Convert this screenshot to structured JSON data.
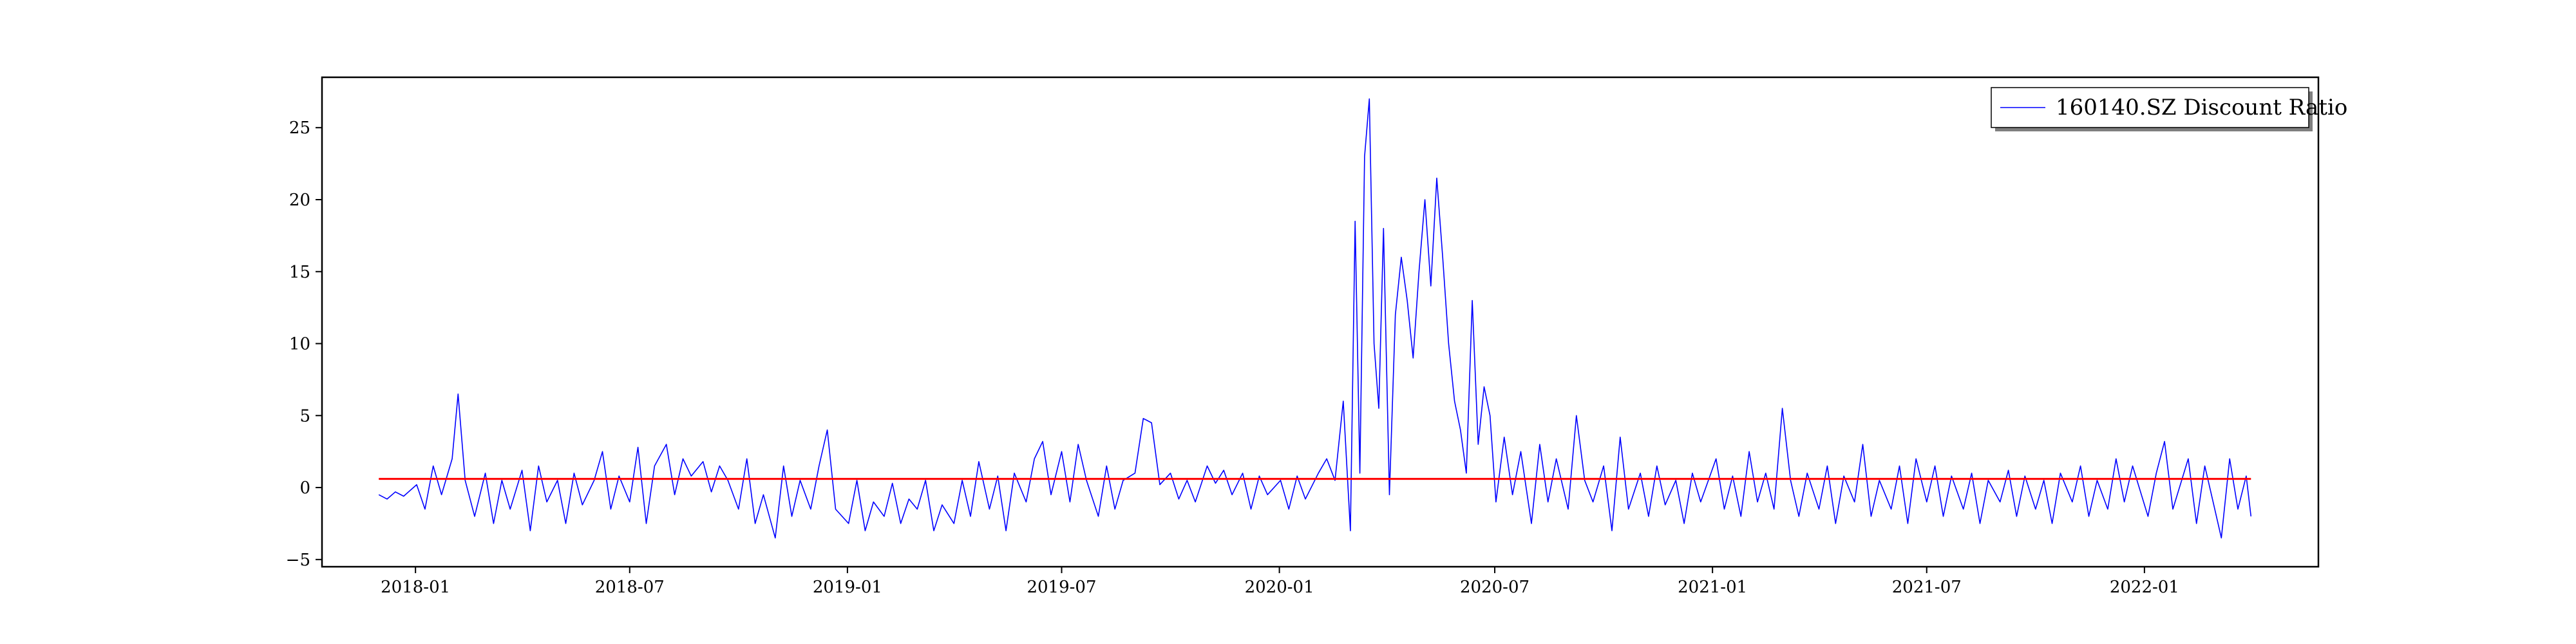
{
  "chart_data": {
    "type": "line",
    "title": "",
    "xlabel": "",
    "ylabel": "",
    "xlim": [
      "2017-10-14",
      "2022-05-28"
    ],
    "ylim": [
      -5.5,
      28.5
    ],
    "x_ticks": [
      "2018-01",
      "2018-07",
      "2019-01",
      "2019-07",
      "2020-01",
      "2020-07",
      "2021-01",
      "2021-07",
      "2022-01"
    ],
    "y_ticks": [
      -5,
      0,
      5,
      10,
      15,
      20,
      25
    ],
    "grid": false,
    "legend": {
      "position": "top-right",
      "entries": [
        "160140.SZ Discount Ratio"
      ]
    },
    "series": [
      {
        "name": "160140.SZ Discount Ratio",
        "color": "#0000ff",
        "points": [
          [
            "2017-12-01",
            -0.5
          ],
          [
            "2017-12-08",
            -0.8
          ],
          [
            "2017-12-15",
            -0.3
          ],
          [
            "2017-12-22",
            -0.6
          ],
          [
            "2018-01-02",
            0.2
          ],
          [
            "2018-01-09",
            -1.5
          ],
          [
            "2018-01-16",
            1.5
          ],
          [
            "2018-01-23",
            -0.5
          ],
          [
            "2018-02-01",
            2.0
          ],
          [
            "2018-02-06",
            6.5
          ],
          [
            "2018-02-12",
            0.5
          ],
          [
            "2018-02-20",
            -2.0
          ],
          [
            "2018-03-01",
            1.0
          ],
          [
            "2018-03-08",
            -2.5
          ],
          [
            "2018-03-15",
            0.5
          ],
          [
            "2018-03-22",
            -1.5
          ],
          [
            "2018-04-01",
            1.2
          ],
          [
            "2018-04-08",
            -3.0
          ],
          [
            "2018-04-15",
            1.5
          ],
          [
            "2018-04-22",
            -1.0
          ],
          [
            "2018-05-01",
            0.5
          ],
          [
            "2018-05-08",
            -2.5
          ],
          [
            "2018-05-15",
            1.0
          ],
          [
            "2018-05-22",
            -1.2
          ],
          [
            "2018-06-01",
            0.5
          ],
          [
            "2018-06-08",
            2.5
          ],
          [
            "2018-06-15",
            -1.5
          ],
          [
            "2018-06-22",
            0.8
          ],
          [
            "2018-07-01",
            -1.0
          ],
          [
            "2018-07-08",
            2.8
          ],
          [
            "2018-07-15",
            -2.5
          ],
          [
            "2018-07-22",
            1.5
          ],
          [
            "2018-08-01",
            3.0
          ],
          [
            "2018-08-08",
            -0.5
          ],
          [
            "2018-08-15",
            2.0
          ],
          [
            "2018-08-22",
            0.8
          ],
          [
            "2018-09-01",
            1.8
          ],
          [
            "2018-09-08",
            -0.3
          ],
          [
            "2018-09-15",
            1.5
          ],
          [
            "2018-09-22",
            0.5
          ],
          [
            "2018-10-01",
            -1.5
          ],
          [
            "2018-10-08",
            2.0
          ],
          [
            "2018-10-15",
            -2.5
          ],
          [
            "2018-10-22",
            -0.5
          ],
          [
            "2018-11-01",
            -3.5
          ],
          [
            "2018-11-08",
            1.5
          ],
          [
            "2018-11-15",
            -2.0
          ],
          [
            "2018-11-22",
            0.5
          ],
          [
            "2018-12-01",
            -1.5
          ],
          [
            "2018-12-08",
            1.5
          ],
          [
            "2018-12-15",
            4.0
          ],
          [
            "2018-12-22",
            -1.5
          ],
          [
            "2019-01-02",
            -2.5
          ],
          [
            "2019-01-09",
            0.5
          ],
          [
            "2019-01-16",
            -3.0
          ],
          [
            "2019-01-23",
            -1.0
          ],
          [
            "2019-02-01",
            -2.0
          ],
          [
            "2019-02-08",
            0.3
          ],
          [
            "2019-02-15",
            -2.5
          ],
          [
            "2019-02-22",
            -0.8
          ],
          [
            "2019-03-01",
            -1.5
          ],
          [
            "2019-03-08",
            0.5
          ],
          [
            "2019-03-15",
            -3.0
          ],
          [
            "2019-03-22",
            -1.2
          ],
          [
            "2019-04-01",
            -2.5
          ],
          [
            "2019-04-08",
            0.5
          ],
          [
            "2019-04-15",
            -2.0
          ],
          [
            "2019-04-22",
            1.8
          ],
          [
            "2019-05-01",
            -1.5
          ],
          [
            "2019-05-08",
            0.8
          ],
          [
            "2019-05-15",
            -3.0
          ],
          [
            "2019-05-22",
            1.0
          ],
          [
            "2019-06-01",
            -1.0
          ],
          [
            "2019-06-08",
            2.0
          ],
          [
            "2019-06-15",
            3.2
          ],
          [
            "2019-06-22",
            -0.5
          ],
          [
            "2019-07-01",
            2.5
          ],
          [
            "2019-07-08",
            -1.0
          ],
          [
            "2019-07-15",
            3.0
          ],
          [
            "2019-07-22",
            0.5
          ],
          [
            "2019-08-01",
            -2.0
          ],
          [
            "2019-08-08",
            1.5
          ],
          [
            "2019-08-15",
            -1.5
          ],
          [
            "2019-08-22",
            0.5
          ],
          [
            "2019-09-01",
            1.0
          ],
          [
            "2019-09-08",
            4.8
          ],
          [
            "2019-09-15",
            4.5
          ],
          [
            "2019-09-22",
            0.2
          ],
          [
            "2019-10-01",
            1.0
          ],
          [
            "2019-10-08",
            -0.8
          ],
          [
            "2019-10-15",
            0.5
          ],
          [
            "2019-10-22",
            -1.0
          ],
          [
            "2019-11-01",
            1.5
          ],
          [
            "2019-11-08",
            0.3
          ],
          [
            "2019-11-15",
            1.2
          ],
          [
            "2019-11-22",
            -0.5
          ],
          [
            "2019-12-01",
            1.0
          ],
          [
            "2019-12-08",
            -1.5
          ],
          [
            "2019-12-15",
            0.8
          ],
          [
            "2019-12-22",
            -0.5
          ],
          [
            "2020-01-02",
            0.5
          ],
          [
            "2020-01-09",
            -1.5
          ],
          [
            "2020-01-16",
            0.8
          ],
          [
            "2020-01-23",
            -0.8
          ],
          [
            "2020-02-03",
            1.0
          ],
          [
            "2020-02-10",
            2.0
          ],
          [
            "2020-02-17",
            0.5
          ],
          [
            "2020-02-24",
            6.0
          ],
          [
            "2020-03-01",
            -3.0
          ],
          [
            "2020-03-05",
            18.5
          ],
          [
            "2020-03-09",
            1.0
          ],
          [
            "2020-03-13",
            23.0
          ],
          [
            "2020-03-17",
            27.0
          ],
          [
            "2020-03-21",
            10.0
          ],
          [
            "2020-03-25",
            5.5
          ],
          [
            "2020-03-29",
            18.0
          ],
          [
            "2020-04-03",
            -0.5
          ],
          [
            "2020-04-08",
            12.0
          ],
          [
            "2020-04-13",
            16.0
          ],
          [
            "2020-04-18",
            13.0
          ],
          [
            "2020-04-23",
            9.0
          ],
          [
            "2020-04-28",
            15.0
          ],
          [
            "2020-05-03",
            20.0
          ],
          [
            "2020-05-08",
            14.0
          ],
          [
            "2020-05-13",
            21.5
          ],
          [
            "2020-05-18",
            16.0
          ],
          [
            "2020-05-23",
            10.0
          ],
          [
            "2020-05-28",
            6.0
          ],
          [
            "2020-06-02",
            4.0
          ],
          [
            "2020-06-07",
            1.0
          ],
          [
            "2020-06-12",
            13.0
          ],
          [
            "2020-06-17",
            3.0
          ],
          [
            "2020-06-22",
            7.0
          ],
          [
            "2020-06-27",
            5.0
          ],
          [
            "2020-07-02",
            -1.0
          ],
          [
            "2020-07-09",
            3.5
          ],
          [
            "2020-07-16",
            -0.5
          ],
          [
            "2020-07-23",
            2.5
          ],
          [
            "2020-08-01",
            -2.5
          ],
          [
            "2020-08-08",
            3.0
          ],
          [
            "2020-08-15",
            -1.0
          ],
          [
            "2020-08-22",
            2.0
          ],
          [
            "2020-09-01",
            -1.5
          ],
          [
            "2020-09-08",
            5.0
          ],
          [
            "2020-09-15",
            0.5
          ],
          [
            "2020-09-22",
            -1.0
          ],
          [
            "2020-10-01",
            1.5
          ],
          [
            "2020-10-08",
            -3.0
          ],
          [
            "2020-10-15",
            3.5
          ],
          [
            "2020-10-22",
            -1.5
          ],
          [
            "2020-11-01",
            1.0
          ],
          [
            "2020-11-08",
            -2.0
          ],
          [
            "2020-11-15",
            1.5
          ],
          [
            "2020-11-22",
            -1.2
          ],
          [
            "2020-12-01",
            0.5
          ],
          [
            "2020-12-08",
            -2.5
          ],
          [
            "2020-12-15",
            1.0
          ],
          [
            "2020-12-22",
            -1.0
          ],
          [
            "2021-01-04",
            2.0
          ],
          [
            "2021-01-11",
            -1.5
          ],
          [
            "2021-01-18",
            0.8
          ],
          [
            "2021-01-25",
            -2.0
          ],
          [
            "2021-02-01",
            2.5
          ],
          [
            "2021-02-08",
            -1.0
          ],
          [
            "2021-02-15",
            1.0
          ],
          [
            "2021-02-22",
            -1.5
          ],
          [
            "2021-03-01",
            5.5
          ],
          [
            "2021-03-08",
            0.5
          ],
          [
            "2021-03-15",
            -2.0
          ],
          [
            "2021-03-22",
            1.0
          ],
          [
            "2021-04-01",
            -1.5
          ],
          [
            "2021-04-08",
            1.5
          ],
          [
            "2021-04-15",
            -2.5
          ],
          [
            "2021-04-22",
            0.8
          ],
          [
            "2021-05-01",
            -1.0
          ],
          [
            "2021-05-08",
            3.0
          ],
          [
            "2021-05-15",
            -2.0
          ],
          [
            "2021-05-22",
            0.5
          ],
          [
            "2021-06-01",
            -1.5
          ],
          [
            "2021-06-08",
            1.5
          ],
          [
            "2021-06-15",
            -2.5
          ],
          [
            "2021-06-22",
            2.0
          ],
          [
            "2021-07-01",
            -1.0
          ],
          [
            "2021-07-08",
            1.5
          ],
          [
            "2021-07-15",
            -2.0
          ],
          [
            "2021-07-22",
            0.8
          ],
          [
            "2021-08-01",
            -1.5
          ],
          [
            "2021-08-08",
            1.0
          ],
          [
            "2021-08-15",
            -2.5
          ],
          [
            "2021-08-22",
            0.5
          ],
          [
            "2021-09-01",
            -1.0
          ],
          [
            "2021-09-08",
            1.2
          ],
          [
            "2021-09-15",
            -2.0
          ],
          [
            "2021-09-22",
            0.8
          ],
          [
            "2021-10-01",
            -1.5
          ],
          [
            "2021-10-08",
            0.5
          ],
          [
            "2021-10-15",
            -2.5
          ],
          [
            "2021-10-22",
            1.0
          ],
          [
            "2021-11-01",
            -1.0
          ],
          [
            "2021-11-08",
            1.5
          ],
          [
            "2021-11-15",
            -2.0
          ],
          [
            "2021-11-22",
            0.5
          ],
          [
            "2021-12-01",
            -1.5
          ],
          [
            "2021-12-08",
            2.0
          ],
          [
            "2021-12-15",
            -1.0
          ],
          [
            "2021-12-22",
            1.5
          ],
          [
            "2022-01-04",
            -2.0
          ],
          [
            "2022-01-11",
            1.0
          ],
          [
            "2022-01-18",
            3.2
          ],
          [
            "2022-01-25",
            -1.5
          ],
          [
            "2022-02-07",
            2.0
          ],
          [
            "2022-02-14",
            -2.5
          ],
          [
            "2022-02-21",
            1.5
          ],
          [
            "2022-02-28",
            -1.0
          ],
          [
            "2022-03-07",
            -3.5
          ],
          [
            "2022-03-14",
            2.0
          ],
          [
            "2022-03-21",
            -1.5
          ],
          [
            "2022-03-28",
            0.8
          ],
          [
            "2022-04-01",
            -2.0
          ]
        ]
      },
      {
        "color": "#ff0000",
        "points": [
          [
            "2017-12-01",
            0.6
          ],
          [
            "2022-04-01",
            0.6
          ]
        ]
      }
    ]
  }
}
